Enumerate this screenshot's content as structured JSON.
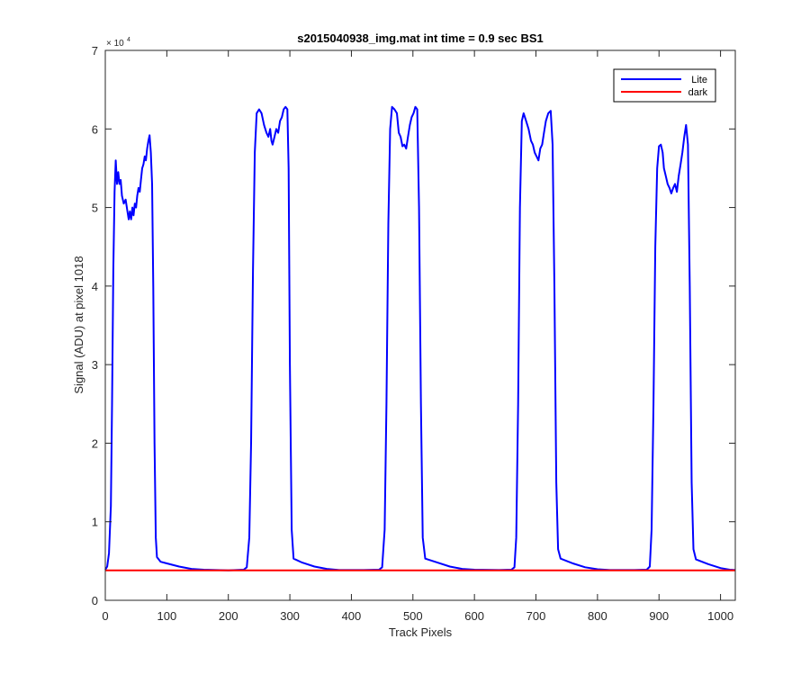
{
  "chart_data": {
    "type": "line",
    "title": "s2015040938_img.mat int time = 0.9 sec   BS1",
    "xlabel": "Track Pixels",
    "ylabel": "Signal (ADU) at pixel 1018",
    "xlim": [
      0,
      1024
    ],
    "ylim": [
      0,
      70000
    ],
    "x_ticks": [
      0,
      100,
      200,
      300,
      400,
      500,
      600,
      700,
      800,
      900,
      1000
    ],
    "y_ticks": [
      0,
      1,
      2,
      3,
      4,
      5,
      6,
      7
    ],
    "y_multiplier_base": "× 10",
    "y_multiplier_exponent": "4",
    "grid": false,
    "legend_position": "top-right",
    "series": [
      {
        "name": "Lite",
        "color": "#0000ff",
        "points": [
          [
            0,
            3900
          ],
          [
            3,
            4300
          ],
          [
            6,
            6000
          ],
          [
            9,
            12000
          ],
          [
            11,
            25000
          ],
          [
            13,
            42000
          ],
          [
            15,
            52000
          ],
          [
            17,
            56000
          ],
          [
            19,
            53000
          ],
          [
            21,
            54500
          ],
          [
            23,
            53000
          ],
          [
            25,
            53500
          ],
          [
            27,
            51500
          ],
          [
            30,
            50500
          ],
          [
            33,
            51000
          ],
          [
            36,
            49500
          ],
          [
            38,
            48500
          ],
          [
            40,
            49500
          ],
          [
            42,
            48500
          ],
          [
            44,
            50000
          ],
          [
            46,
            49000
          ],
          [
            48,
            50500
          ],
          [
            50,
            50000
          ],
          [
            52,
            51500
          ],
          [
            54,
            52500
          ],
          [
            56,
            52000
          ],
          [
            58,
            53500
          ],
          [
            60,
            55000
          ],
          [
            62,
            55500
          ],
          [
            64,
            56500
          ],
          [
            66,
            56000
          ],
          [
            68,
            57500
          ],
          [
            70,
            58500
          ],
          [
            72,
            59200
          ],
          [
            74,
            57000
          ],
          [
            76,
            53000
          ],
          [
            78,
            40000
          ],
          [
            80,
            20000
          ],
          [
            82,
            8000
          ],
          [
            84,
            5500
          ],
          [
            90,
            4900
          ],
          [
            100,
            4700
          ],
          [
            120,
            4300
          ],
          [
            140,
            4000
          ],
          [
            160,
            3900
          ],
          [
            200,
            3800
          ],
          [
            225,
            3900
          ],
          [
            230,
            4200
          ],
          [
            234,
            8000
          ],
          [
            237,
            20000
          ],
          [
            240,
            42000
          ],
          [
            243,
            57000
          ],
          [
            246,
            62000
          ],
          [
            250,
            62500
          ],
          [
            254,
            62000
          ],
          [
            258,
            60500
          ],
          [
            262,
            59500
          ],
          [
            265,
            59000
          ],
          [
            268,
            60000
          ],
          [
            270,
            58500
          ],
          [
            272,
            58000
          ],
          [
            275,
            59000
          ],
          [
            278,
            60000
          ],
          [
            281,
            59500
          ],
          [
            284,
            61000
          ],
          [
            287,
            61500
          ],
          [
            290,
            62500
          ],
          [
            293,
            62800
          ],
          [
            296,
            62500
          ],
          [
            298,
            55000
          ],
          [
            300,
            30000
          ],
          [
            303,
            9000
          ],
          [
            306,
            5300
          ],
          [
            320,
            4800
          ],
          [
            340,
            4300
          ],
          [
            360,
            4000
          ],
          [
            380,
            3850
          ],
          [
            420,
            3850
          ],
          [
            445,
            3900
          ],
          [
            450,
            4200
          ],
          [
            454,
            9000
          ],
          [
            457,
            25000
          ],
          [
            460,
            48000
          ],
          [
            463,
            60000
          ],
          [
            466,
            62800
          ],
          [
            470,
            62500
          ],
          [
            474,
            62000
          ],
          [
            477,
            59500
          ],
          [
            480,
            59000
          ],
          [
            483,
            57800
          ],
          [
            486,
            58000
          ],
          [
            489,
            57500
          ],
          [
            492,
            59000
          ],
          [
            495,
            60500
          ],
          [
            498,
            61500
          ],
          [
            501,
            62000
          ],
          [
            504,
            62800
          ],
          [
            507,
            62500
          ],
          [
            510,
            50000
          ],
          [
            513,
            25000
          ],
          [
            516,
            8000
          ],
          [
            520,
            5300
          ],
          [
            540,
            4800
          ],
          [
            560,
            4300
          ],
          [
            580,
            4000
          ],
          [
            600,
            3900
          ],
          [
            640,
            3850
          ],
          [
            660,
            3900
          ],
          [
            665,
            4200
          ],
          [
            668,
            8000
          ],
          [
            671,
            25000
          ],
          [
            674,
            50000
          ],
          [
            677,
            61000
          ],
          [
            680,
            62000
          ],
          [
            684,
            61000
          ],
          [
            688,
            60000
          ],
          [
            692,
            58500
          ],
          [
            695,
            58000
          ],
          [
            698,
            57000
          ],
          [
            701,
            56500
          ],
          [
            704,
            56000
          ],
          [
            707,
            57500
          ],
          [
            710,
            58000
          ],
          [
            713,
            59500
          ],
          [
            716,
            61000
          ],
          [
            720,
            62000
          ],
          [
            724,
            62300
          ],
          [
            727,
            58000
          ],
          [
            730,
            40000
          ],
          [
            733,
            15000
          ],
          [
            736,
            6500
          ],
          [
            740,
            5300
          ],
          [
            760,
            4700
          ],
          [
            780,
            4200
          ],
          [
            800,
            3950
          ],
          [
            820,
            3850
          ],
          [
            860,
            3850
          ],
          [
            880,
            3900
          ],
          [
            885,
            4300
          ],
          [
            888,
            9000
          ],
          [
            891,
            25000
          ],
          [
            894,
            45000
          ],
          [
            897,
            55000
          ],
          [
            900,
            57800
          ],
          [
            903,
            58000
          ],
          [
            906,
            57000
          ],
          [
            908,
            55000
          ],
          [
            911,
            54000
          ],
          [
            914,
            53000
          ],
          [
            917,
            52500
          ],
          [
            920,
            51800
          ],
          [
            923,
            52500
          ],
          [
            926,
            53000
          ],
          [
            929,
            52000
          ],
          [
            932,
            54000
          ],
          [
            935,
            55500
          ],
          [
            938,
            57000
          ],
          [
            941,
            59000
          ],
          [
            944,
            60500
          ],
          [
            947,
            58000
          ],
          [
            950,
            40000
          ],
          [
            953,
            15000
          ],
          [
            956,
            6500
          ],
          [
            960,
            5200
          ],
          [
            980,
            4600
          ],
          [
            1000,
            4100
          ],
          [
            1015,
            3900
          ],
          [
            1024,
            3850
          ]
        ]
      },
      {
        "name": "dark",
        "color": "#ff0000",
        "points": [
          [
            0,
            3800
          ],
          [
            1024,
            3800
          ]
        ]
      }
    ]
  }
}
